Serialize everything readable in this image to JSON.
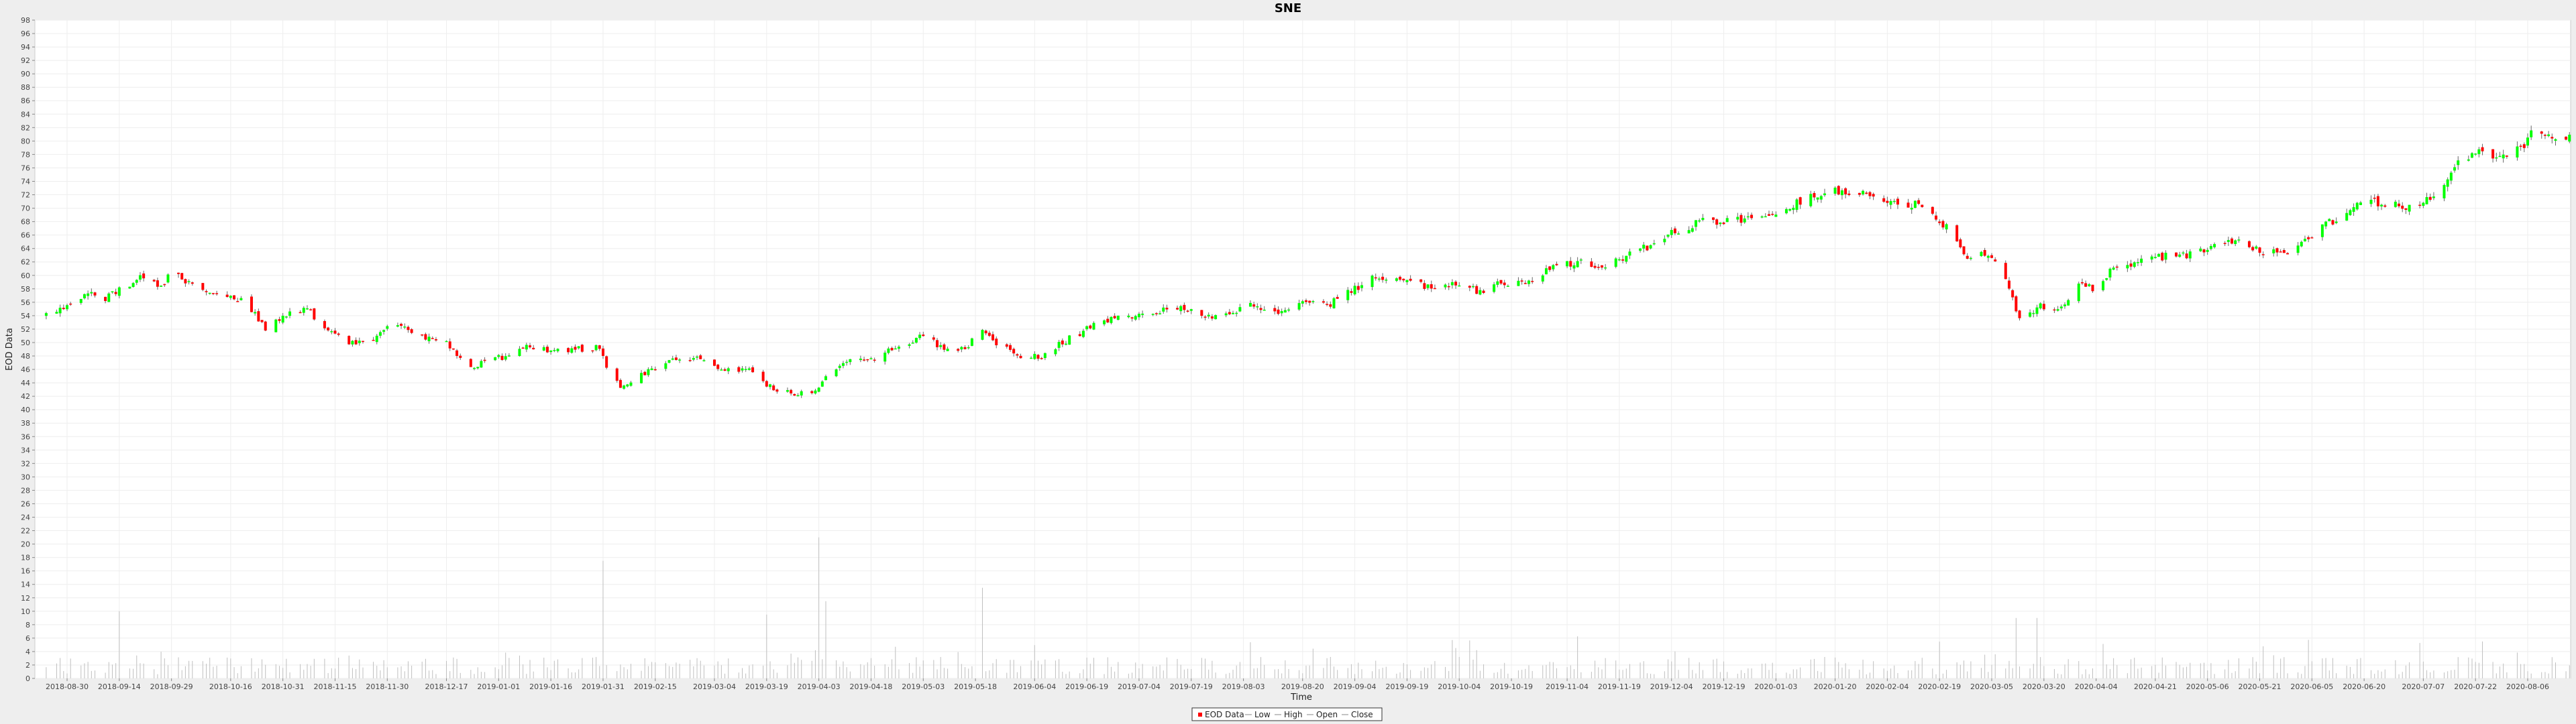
{
  "chart_data": {
    "type": "candlestick",
    "title": "SNE",
    "xlabel": "Time",
    "ylabel": "EOD Data",
    "ylim": [
      0,
      98
    ],
    "y_ticks": [
      0,
      2,
      4,
      6,
      8,
      10,
      12,
      14,
      16,
      18,
      20,
      22,
      24,
      26,
      28,
      30,
      32,
      34,
      36,
      38,
      40,
      42,
      44,
      46,
      48,
      50,
      52,
      54,
      56,
      58,
      60,
      62,
      64,
      66,
      68,
      70,
      72,
      74,
      76,
      78,
      80,
      82,
      84,
      86,
      88,
      90,
      92,
      94,
      96,
      98
    ],
    "x_tick_labels": [
      "2018-08-30",
      "2018-09-14",
      "2018-09-29",
      "2018-10-16",
      "2018-10-31",
      "2018-11-15",
      "2018-11-30",
      "2018-12-17",
      "2019-01-01",
      "2019-01-16",
      "2019-01-31",
      "2019-02-15",
      "2019-03-04",
      "2019-03-19",
      "2019-04-03",
      "2019-04-18",
      "2019-05-03",
      "2019-05-18",
      "2019-06-04",
      "2019-06-19",
      "2019-07-04",
      "2019-07-19",
      "2019-08-03",
      "2019-08-20",
      "2019-09-04",
      "2019-09-19",
      "2019-10-04",
      "2019-10-19",
      "2019-11-04",
      "2019-11-19",
      "2019-12-04",
      "2019-12-19",
      "2020-01-03",
      "2020-01-20",
      "2020-02-04",
      "2020-02-19",
      "2020-03-05",
      "2020-03-20",
      "2020-04-04",
      "2020-04-21",
      "2020-05-06",
      "2020-05-21",
      "2020-06-05",
      "2020-06-20",
      "2020-07-07",
      "2020-07-22",
      "2020-08-06"
    ],
    "close_anchors": [
      [
        "2018-08-24",
        54.2
      ],
      [
        "2018-08-30",
        55.2
      ],
      [
        "2018-09-05",
        57.6
      ],
      [
        "2018-09-10",
        56.6
      ],
      [
        "2018-09-14",
        58.0
      ],
      [
        "2018-09-20",
        59.6
      ],
      [
        "2018-09-26",
        58.2
      ],
      [
        "2018-09-29",
        60.5
      ],
      [
        "2018-10-03",
        59.0
      ],
      [
        "2018-10-09",
        57.6
      ],
      [
        "2018-10-16",
        57.2
      ],
      [
        "2018-10-22",
        55.0
      ],
      [
        "2018-10-26",
        52.0
      ],
      [
        "2018-10-31",
        54.0
      ],
      [
        "2018-11-07",
        55.0
      ],
      [
        "2018-11-12",
        52.0
      ],
      [
        "2018-11-19",
        50.2
      ],
      [
        "2018-11-23",
        49.8
      ],
      [
        "2018-11-30",
        52.0
      ],
      [
        "2018-12-04",
        52.6
      ],
      [
        "2018-12-10",
        50.6
      ],
      [
        "2018-12-17",
        50.0
      ],
      [
        "2018-12-24",
        46.0
      ],
      [
        "2018-12-28",
        47.2
      ],
      [
        "2019-01-03",
        48.0
      ],
      [
        "2019-01-08",
        49.4
      ],
      [
        "2019-01-16",
        48.7
      ],
      [
        "2019-01-24",
        49.0
      ],
      [
        "2019-01-30",
        49.2
      ],
      [
        "2019-02-01",
        46.2
      ],
      [
        "2019-02-05",
        43.5
      ],
      [
        "2019-02-12",
        45.5
      ],
      [
        "2019-02-19",
        47.5
      ],
      [
        "2019-02-27",
        47.8
      ],
      [
        "2019-03-06",
        46.0
      ],
      [
        "2019-03-14",
        45.8
      ],
      [
        "2019-03-21",
        43.0
      ],
      [
        "2019-03-27",
        42.4
      ],
      [
        "2019-04-02",
        42.5
      ],
      [
        "2019-04-05",
        45.0
      ],
      [
        "2019-04-11",
        47.0
      ],
      [
        "2019-04-18",
        47.5
      ],
      [
        "2019-04-25",
        49.2
      ],
      [
        "2019-05-03",
        51.0
      ],
      [
        "2019-05-10",
        48.8
      ],
      [
        "2019-05-15",
        49.0
      ],
      [
        "2019-05-20",
        52.0
      ],
      [
        "2019-05-24",
        50.0
      ],
      [
        "2019-05-30",
        48.2
      ],
      [
        "2019-06-05",
        47.8
      ],
      [
        "2019-06-12",
        50.0
      ],
      [
        "2019-06-19",
        52.0
      ],
      [
        "2019-06-25",
        53.4
      ],
      [
        "2019-07-02",
        53.8
      ],
      [
        "2019-07-09",
        54.6
      ],
      [
        "2019-07-16",
        55.2
      ],
      [
        "2019-07-23",
        53.6
      ],
      [
        "2019-07-31",
        54.4
      ],
      [
        "2019-08-06",
        55.8
      ],
      [
        "2019-08-12",
        54.4
      ],
      [
        "2019-08-20",
        56.0
      ],
      [
        "2019-08-27",
        55.4
      ],
      [
        "2019-09-04",
        58.0
      ],
      [
        "2019-09-11",
        60.0
      ],
      [
        "2019-09-19",
        59.2
      ],
      [
        "2019-09-26",
        58.0
      ],
      [
        "2019-10-03",
        58.6
      ],
      [
        "2019-10-10",
        57.6
      ],
      [
        "2019-10-17",
        59.0
      ],
      [
        "2019-10-24",
        59.0
      ],
      [
        "2019-10-31",
        61.5
      ],
      [
        "2019-11-07",
        62.0
      ],
      [
        "2019-11-14",
        61.2
      ],
      [
        "2019-11-21",
        63.0
      ],
      [
        "2019-11-28",
        64.5
      ],
      [
        "2019-12-05",
        66.5
      ],
      [
        "2019-12-12",
        68.0
      ],
      [
        "2019-12-19",
        68.0
      ],
      [
        "2019-12-27",
        68.3
      ],
      [
        "2020-01-03",
        68.5
      ],
      [
        "2020-01-10",
        71.0
      ],
      [
        "2020-01-17",
        72.5
      ],
      [
        "2020-01-24",
        72.6
      ],
      [
        "2020-01-31",
        71.4
      ],
      [
        "2020-02-06",
        70.8
      ],
      [
        "2020-02-13",
        70.4
      ],
      [
        "2020-02-21",
        67.0
      ],
      [
        "2020-02-27",
        63.0
      ],
      [
        "2020-03-03",
        63.5
      ],
      [
        "2020-03-09",
        60.0
      ],
      [
        "2020-03-13",
        53.5
      ],
      [
        "2020-03-19",
        55.5
      ],
      [
        "2020-03-24",
        54.5
      ],
      [
        "2020-03-30",
        59.0
      ],
      [
        "2020-04-03",
        58.0
      ],
      [
        "2020-04-09",
        61.0
      ],
      [
        "2020-04-16",
        62.0
      ],
      [
        "2020-04-24",
        62.8
      ],
      [
        "2020-05-01",
        63.2
      ],
      [
        "2020-05-08",
        64.2
      ],
      [
        "2020-05-15",
        65.0
      ],
      [
        "2020-05-22",
        63.4
      ],
      [
        "2020-05-29",
        63.4
      ],
      [
        "2020-06-05",
        66.0
      ],
      [
        "2020-06-12",
        68.5
      ],
      [
        "2020-06-19",
        71.2
      ],
      [
        "2020-06-26",
        70.6
      ],
      [
        "2020-07-03",
        70.0
      ],
      [
        "2020-07-10",
        72.0
      ],
      [
        "2020-07-17",
        77.0
      ],
      [
        "2020-07-24",
        78.2
      ],
      [
        "2020-07-31",
        78.0
      ],
      [
        "2020-08-05",
        79.5
      ],
      [
        "2020-08-07",
        81.6
      ],
      [
        "2020-08-11",
        80.8
      ],
      [
        "2020-08-14",
        80.2
      ],
      [
        "2020-08-18",
        80.5
      ]
    ],
    "volume_spikes": [
      [
        "2019-01-31",
        17.5
      ],
      [
        "2019-03-19",
        9.5
      ],
      [
        "2019-04-03",
        21.0
      ],
      [
        "2019-04-05",
        11.5
      ],
      [
        "2019-05-20",
        13.5
      ],
      [
        "2018-09-14",
        10.0
      ],
      [
        "2020-03-12",
        9.0
      ],
      [
        "2020-03-18",
        9.0
      ],
      [
        "2020-07-24",
        5.5
      ]
    ],
    "legend": [
      "EOD Data",
      "Low",
      "High",
      "Open",
      "Close"
    ],
    "colors": {
      "up": "#00ff00",
      "down": "#ff0000",
      "wick": "#666666",
      "volume": "#bfbfbf",
      "grid": "#eeeeee",
      "plot_bg": "#ffffff",
      "page_bg": "#eeeeee"
    }
  }
}
